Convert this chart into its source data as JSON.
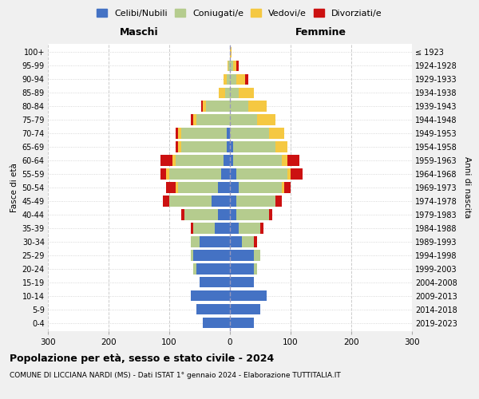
{
  "age_groups": [
    "0-4",
    "5-9",
    "10-14",
    "15-19",
    "20-24",
    "25-29",
    "30-34",
    "35-39",
    "40-44",
    "45-49",
    "50-54",
    "55-59",
    "60-64",
    "65-69",
    "70-74",
    "75-79",
    "80-84",
    "85-89",
    "90-94",
    "95-99",
    "100+"
  ],
  "birth_years": [
    "2019-2023",
    "2014-2018",
    "2009-2013",
    "2004-2008",
    "1999-2003",
    "1994-1998",
    "1989-1993",
    "1984-1988",
    "1979-1983",
    "1974-1978",
    "1969-1973",
    "1964-1968",
    "1959-1963",
    "1954-1958",
    "1949-1953",
    "1944-1948",
    "1939-1943",
    "1934-1938",
    "1929-1933",
    "1924-1928",
    "≤ 1923"
  ],
  "males": {
    "celibi": [
      45,
      55,
      65,
      50,
      55,
      60,
      50,
      25,
      20,
      30,
      20,
      15,
      10,
      5,
      5,
      0,
      0,
      0,
      0,
      0,
      0
    ],
    "coniugati": [
      0,
      0,
      0,
      0,
      5,
      5,
      15,
      35,
      55,
      70,
      65,
      85,
      80,
      75,
      75,
      55,
      40,
      8,
      5,
      2,
      0
    ],
    "vedovi": [
      0,
      0,
      0,
      0,
      0,
      0,
      0,
      0,
      0,
      0,
      5,
      5,
      5,
      5,
      5,
      5,
      5,
      10,
      5,
      2,
      0
    ],
    "divorziati": [
      0,
      0,
      0,
      0,
      0,
      0,
      0,
      5,
      5,
      10,
      15,
      10,
      20,
      5,
      5,
      5,
      2,
      0,
      0,
      0,
      0
    ]
  },
  "females": {
    "nubili": [
      40,
      50,
      60,
      40,
      40,
      40,
      20,
      15,
      10,
      10,
      15,
      10,
      5,
      5,
      0,
      0,
      0,
      0,
      0,
      0,
      0
    ],
    "coniugate": [
      0,
      0,
      0,
      0,
      5,
      10,
      20,
      35,
      55,
      65,
      70,
      85,
      80,
      70,
      65,
      45,
      30,
      15,
      10,
      5,
      0
    ],
    "vedove": [
      0,
      0,
      0,
      0,
      0,
      0,
      0,
      0,
      0,
      0,
      5,
      5,
      10,
      20,
      25,
      30,
      30,
      25,
      15,
      5,
      2
    ],
    "divorziate": [
      0,
      0,
      0,
      0,
      0,
      0,
      5,
      5,
      5,
      10,
      10,
      20,
      20,
      0,
      0,
      0,
      0,
      0,
      5,
      5,
      0
    ]
  },
  "colors": {
    "celibi_nubili": "#4472c4",
    "coniugati": "#b5cc8e",
    "vedovi": "#f5c842",
    "divorziati": "#cc1111"
  },
  "xlim": 300,
  "title": "Popolazione per età, sesso e stato civile - 2024",
  "subtitle": "COMUNE DI LICCIANA NARDI (MS) - Dati ISTAT 1° gennaio 2024 - Elaborazione TUTTITALIA.IT",
  "xlabel_left": "Maschi",
  "xlabel_right": "Femmine",
  "ylabel_left": "Fasce di età",
  "ylabel_right": "Anni di nascita",
  "legend_labels": [
    "Celibi/Nubili",
    "Coniugati/e",
    "Vedovi/e",
    "Divorziati/e"
  ],
  "bg_color": "#f0f0f0",
  "plot_bg": "#ffffff"
}
